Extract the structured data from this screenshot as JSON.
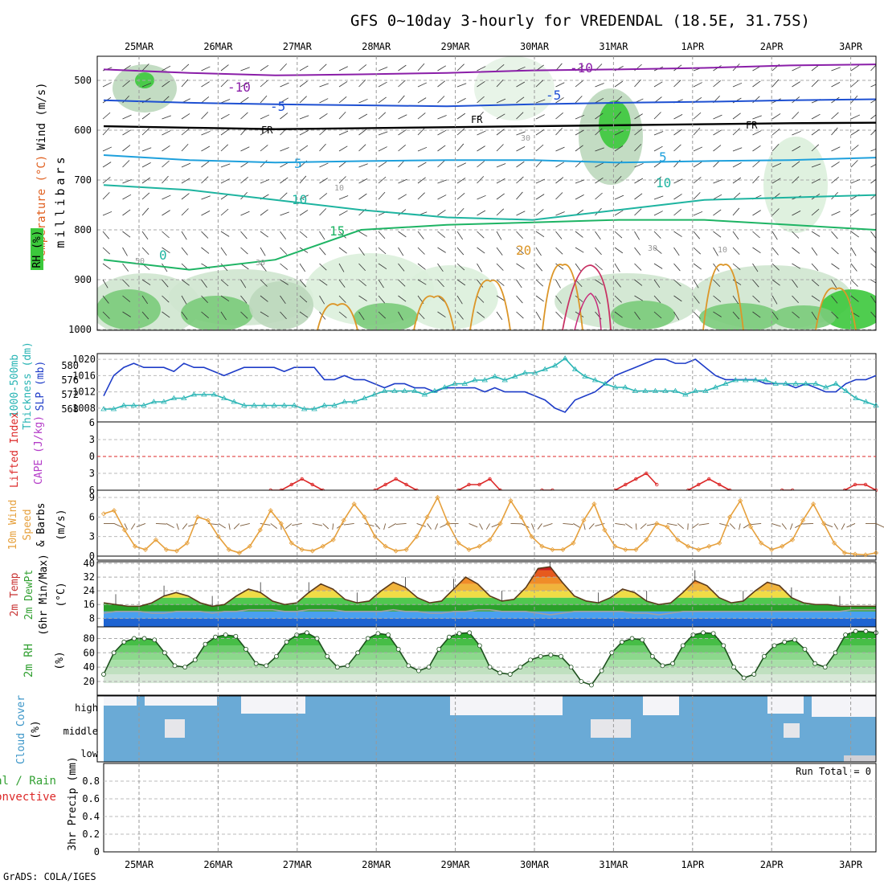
{
  "title": "GFS 0~10day 3-hourly for VREDENDAL (18.5E, 31.75S)",
  "footer": "GrADS: COLA/IGES",
  "dates": [
    "25MAR",
    "26MAR",
    "27MAR",
    "28MAR",
    "29MAR",
    "30MAR",
    "31MAR",
    "1APR",
    "2APR",
    "3APR"
  ],
  "colors": {
    "rh": "#3cc83c",
    "temp_purple": "#8a1ea8",
    "temp_blue": "#1e50d2",
    "temp_fr": "#000000",
    "temp_cyan": "#1ea0dc",
    "temp_teal": "#1eb4a0",
    "temp_green": "#1eb464",
    "temp_orange": "#dc9628",
    "slp": "#1e3cc8",
    "thickness": "#28b4b4",
    "lifted": "#dc2828",
    "wind10m": "#e6a03c",
    "cloud_bg": "#6aaad6",
    "cloud_fill": "#f4f4f8"
  },
  "chart_data": [
    {
      "type": "area",
      "name": "upper-air cross section",
      "axis_labels": [
        "Wind (m/s)",
        "Temperature (°C)",
        "RH (%)",
        "millibars"
      ],
      "y_ticks": [
        500,
        600,
        700,
        800,
        900,
        1000
      ],
      "contour_labels": [
        "-10",
        "-10",
        "-5",
        "-5",
        "FR",
        "FR",
        "FR",
        "5",
        "5",
        "10",
        "10",
        "15",
        "20",
        "0",
        "30",
        "30",
        "10",
        "50",
        "30",
        "10"
      ],
      "isotherms": [
        {
          "label": "-10",
          "pressure": [
            478,
            485,
            490,
            488,
            485,
            480,
            478,
            475,
            470,
            468
          ]
        },
        {
          "label": "-5",
          "pressure": [
            540,
            545,
            548,
            550,
            552,
            548,
            545,
            543,
            540,
            538
          ]
        },
        {
          "label": "FR",
          "pressure": [
            592,
            595,
            598,
            596,
            594,
            592,
            590,
            588,
            586,
            585
          ]
        },
        {
          "label": "5",
          "pressure": [
            650,
            660,
            665,
            662,
            660,
            660,
            665,
            662,
            660,
            655
          ]
        },
        {
          "label": "10",
          "pressure": [
            710,
            720,
            740,
            760,
            775,
            780,
            760,
            740,
            735,
            730
          ]
        },
        {
          "label": "15",
          "pressure": [
            860,
            880,
            860,
            800,
            790,
            785,
            780,
            780,
            790,
            800
          ]
        }
      ]
    },
    {
      "type": "line",
      "name": "thickness and slp",
      "axis_labels": [
        "1000-500mb",
        "Thickness (dm)",
        "SLP (mb)"
      ],
      "left_ticks": [
        568,
        572,
        576,
        580
      ],
      "right_ticks": [
        1008,
        1012,
        1016,
        1020
      ],
      "series": [
        {
          "name": "SLP (mb)",
          "axis": "right",
          "values": [
            1011,
            1016,
            1018,
            1019,
            1018,
            1018,
            1018,
            1017,
            1019,
            1018,
            1018,
            1017,
            1016,
            1017,
            1018,
            1018,
            1018,
            1018,
            1017,
            1018,
            1018,
            1018,
            1015,
            1015,
            1016,
            1015,
            1015,
            1014,
            1013,
            1014,
            1014,
            1013,
            1013,
            1012,
            1013,
            1013,
            1013,
            1013,
            1012,
            1013,
            1012,
            1012,
            1012,
            1011,
            1010,
            1008,
            1007,
            1010,
            1011,
            1012,
            1014,
            1016,
            1017,
            1018,
            1019,
            1020,
            1020,
            1019,
            1019,
            1020,
            1018,
            1016,
            1015,
            1015,
            1015,
            1015,
            1014,
            1014,
            1014,
            1013,
            1014,
            1013,
            1012,
            1012,
            1014,
            1015,
            1015,
            1016
          ]
        },
        {
          "name": "Thickness (dm)",
          "axis": "left",
          "values": [
            568,
            568,
            569,
            569,
            569,
            570,
            570,
            571,
            571,
            572,
            572,
            572,
            571,
            570,
            569,
            569,
            569,
            569,
            569,
            569,
            568,
            568,
            569,
            569,
            570,
            570,
            571,
            572,
            573,
            573,
            573,
            573,
            572,
            573,
            574,
            575,
            575,
            576,
            576,
            577,
            576,
            577,
            578,
            578,
            579,
            580,
            582,
            579,
            577,
            576,
            575,
            574,
            574,
            573,
            573,
            573,
            573,
            573,
            572,
            573,
            573,
            574,
            575,
            576,
            576,
            576,
            576,
            575,
            575,
            575,
            575,
            575,
            574,
            575,
            573,
            571,
            570,
            569
          ]
        }
      ]
    },
    {
      "type": "line",
      "name": "lifted index and cape",
      "axis_labels": [
        "Lifted Index",
        "CAPE (J/kg)"
      ],
      "y_ticks": [
        -6,
        -3,
        0,
        3,
        6
      ],
      "series": [
        {
          "name": "Lifted Index",
          "values": [
            null,
            null,
            null,
            null,
            null,
            null,
            null,
            null,
            null,
            null,
            null,
            null,
            null,
            null,
            null,
            null,
            6,
            6,
            5,
            4,
            5,
            6,
            null,
            null,
            null,
            null,
            6,
            5,
            4,
            5,
            6,
            null,
            null,
            null,
            6,
            5,
            5,
            4,
            6,
            null,
            null,
            null,
            6,
            6,
            null,
            null,
            null,
            null,
            null,
            6,
            5,
            4,
            3,
            5,
            null,
            null,
            6,
            5,
            4,
            5,
            6,
            null,
            null,
            null,
            null,
            6,
            6,
            null,
            null,
            null,
            null,
            6,
            5,
            5,
            6
          ]
        }
      ]
    },
    {
      "type": "line",
      "name": "10m wind",
      "axis_labels": [
        "10m Wind",
        "Speed",
        "& Barbs",
        "(m/s)"
      ],
      "y_ticks": [
        0,
        3,
        6,
        9
      ],
      "series": [
        {
          "name": "Speed",
          "values": [
            6.5,
            7.0,
            4.0,
            1.5,
            1.0,
            2.5,
            1.0,
            0.8,
            2.0,
            6.0,
            5.5,
            3.0,
            1.0,
            0.5,
            1.5,
            4.0,
            7.0,
            5.0,
            2.0,
            1.0,
            0.8,
            1.5,
            2.5,
            5.5,
            8.0,
            6.0,
            3.0,
            1.5,
            0.8,
            1.0,
            3.0,
            6.0,
            9.0,
            5.0,
            2.0,
            1.0,
            1.5,
            2.5,
            5.0,
            8.5,
            6.0,
            3.0,
            1.5,
            1.0,
            1.0,
            2.0,
            5.5,
            8.0,
            4.0,
            1.5,
            1.0,
            1.0,
            2.5,
            5.0,
            4.5,
            2.5,
            1.5,
            1.0,
            1.5,
            2.0,
            6.0,
            8.5,
            4.5,
            2.0,
            1.0,
            1.5,
            2.5,
            5.5,
            8.0,
            5.0,
            2.0,
            0.5,
            0.3,
            0.2,
            0.5
          ]
        }
      ]
    },
    {
      "type": "area",
      "name": "2m temperature and dewpoint",
      "axis_labels": [
        "2m Temp",
        "2m DewPt",
        "(6hr Min/Max)",
        "(°C)"
      ],
      "y_ticks": [
        8,
        16,
        24,
        32,
        40
      ],
      "series": [
        {
          "name": "2m Temp",
          "values": [
            17,
            16,
            15,
            15,
            17,
            21,
            23,
            21,
            17,
            15,
            16,
            21,
            25,
            23,
            18,
            16,
            17,
            23,
            28,
            25,
            19,
            17,
            18,
            24,
            29,
            26,
            20,
            17,
            18,
            25,
            32,
            28,
            21,
            18,
            19,
            26,
            37,
            38,
            29,
            21,
            18,
            17,
            20,
            25,
            23,
            18,
            16,
            17,
            23,
            30,
            27,
            20,
            17,
            18,
            24,
            29,
            27,
            20,
            17,
            16,
            16,
            15,
            15,
            15,
            15
          ]
        },
        {
          "name": "2m DewPt",
          "values": [
            11,
            12,
            12,
            12,
            11,
            11,
            12,
            12,
            12,
            11,
            12,
            12,
            13,
            13,
            13,
            12,
            12,
            13,
            13,
            13,
            12,
            12,
            12,
            12,
            13,
            12,
            12,
            11,
            11,
            12,
            12,
            13,
            13,
            12,
            12,
            12,
            11,
            10,
            11,
            12,
            12,
            12,
            12,
            12,
            11,
            11,
            10,
            11,
            12,
            12,
            12,
            12,
            12,
            12,
            12,
            12,
            12,
            12,
            12,
            12,
            12,
            12,
            13,
            13,
            13
          ]
        }
      ]
    },
    {
      "type": "area",
      "name": "2m relative humidity",
      "axis_labels": [
        "2m RH",
        "(%)"
      ],
      "y_ticks": [
        20,
        40,
        60,
        80
      ],
      "series": [
        {
          "name": "2m RH",
          "values": [
            30,
            60,
            75,
            80,
            80,
            78,
            60,
            42,
            40,
            50,
            72,
            82,
            85,
            83,
            65,
            45,
            42,
            55,
            75,
            85,
            88,
            80,
            55,
            40,
            42,
            60,
            80,
            87,
            85,
            65,
            42,
            35,
            40,
            65,
            82,
            87,
            88,
            70,
            40,
            32,
            30,
            40,
            50,
            55,
            57,
            55,
            40,
            20,
            15,
            35,
            60,
            75,
            80,
            78,
            55,
            42,
            45,
            70,
            85,
            88,
            87,
            70,
            40,
            25,
            30,
            55,
            70,
            75,
            78,
            65,
            45,
            40,
            60,
            85,
            90,
            90,
            88
          ]
        }
      ]
    },
    {
      "type": "bar",
      "name": "cloud cover",
      "axis_labels": [
        "Cloud Cover",
        "(%)"
      ],
      "categories": [
        "high",
        "middle",
        "low"
      ]
    },
    {
      "type": "bar",
      "name": "precipitation",
      "axis_labels": [
        "Total / Rain",
        "Convective",
        "3hr Precip (mm)"
      ],
      "y_ticks": [
        0,
        0.2,
        0.4,
        0.6,
        0.8
      ],
      "annotation": "Run Total = 0",
      "values": []
    }
  ]
}
